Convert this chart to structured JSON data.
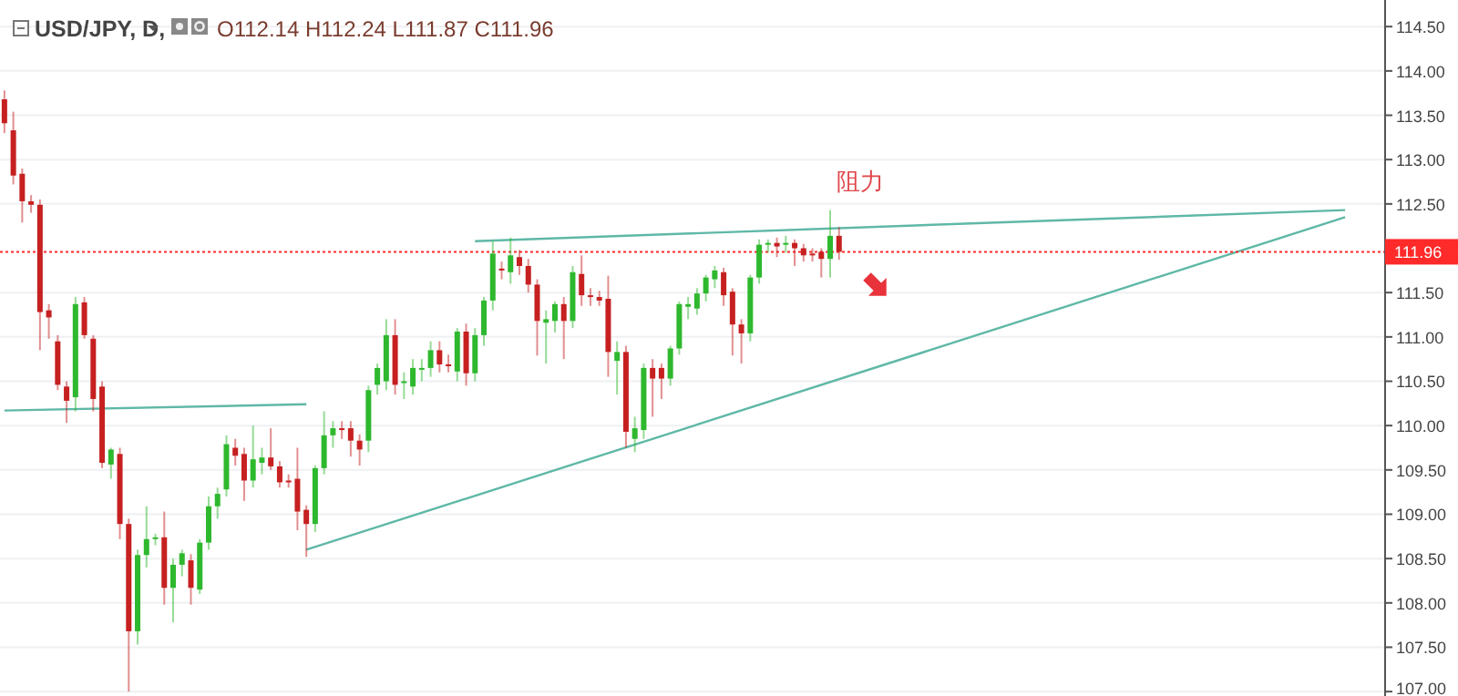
{
  "chart_data": {
    "type": "candlestick",
    "title": "USD/JPY, D,",
    "subtitle": "O112.14 H112.24 L111.87 C111.96",
    "annotations": [
      "阻力"
    ],
    "categories": [
      null,
      null,
      null,
      null,
      null,
      null,
      null,
      null,
      null,
      null,
      null,
      null,
      null,
      null,
      null,
      null,
      null,
      null,
      null,
      null,
      null,
      null,
      null,
      null,
      null,
      null,
      null,
      null,
      null,
      null,
      null,
      null,
      null,
      null,
      null,
      null,
      null,
      null,
      null,
      null,
      null,
      null,
      null,
      null,
      null,
      null,
      null,
      null,
      null,
      null,
      null,
      null,
      null,
      null,
      null,
      null,
      null,
      null,
      null,
      null,
      null,
      null,
      null,
      null,
      null,
      null,
      null,
      null,
      null,
      null,
      null,
      null,
      null,
      null,
      null,
      null,
      null,
      null,
      null,
      null,
      null,
      null,
      null,
      null,
      null,
      null,
      null,
      null,
      null,
      null,
      null,
      null,
      null,
      null,
      null,
      null,
      null,
      null,
      null,
      null,
      null,
      null,
      null,
      null,
      null,
      null,
      null,
      null,
      null,
      null,
      null,
      null,
      null,
      null,
      null,
      null,
      null,
      null,
      null,
      null,
      null,
      null,
      null,
      null,
      null,
      null,
      null,
      null,
      null,
      null,
      null,
      null,
      null,
      null,
      null,
      null,
      null,
      null,
      null,
      null,
      null,
      null,
      null,
      null,
      null,
      null,
      null,
      null,
      null,
      null,
      null,
      null,
      null,
      null,
      null,
      null
    ],
    "ohlc": [
      [
        113.68,
        113.78,
        113.3,
        113.41
      ],
      [
        113.33,
        113.54,
        112.72,
        112.82
      ],
      [
        112.84,
        112.9,
        112.29,
        112.53
      ],
      [
        112.53,
        112.6,
        112.4,
        112.49
      ],
      [
        112.49,
        112.55,
        110.85,
        111.28
      ],
      [
        111.3,
        111.37,
        110.98,
        111.22
      ],
      [
        110.95,
        111.02,
        110.4,
        110.46
      ],
      [
        110.44,
        110.5,
        110.03,
        110.28
      ],
      [
        110.32,
        111.45,
        110.16,
        111.37
      ],
      [
        111.39,
        111.45,
        110.98,
        111.02
      ],
      [
        110.98,
        111.02,
        110.16,
        110.3
      ],
      [
        110.44,
        110.5,
        109.52,
        109.58
      ],
      [
        109.56,
        109.75,
        109.4,
        109.73
      ],
      [
        109.68,
        109.75,
        108.72,
        108.89
      ],
      [
        108.89,
        108.95,
        107.0,
        107.68
      ],
      [
        107.68,
        108.6,
        107.53,
        108.54
      ],
      [
        108.54,
        109.09,
        108.4,
        108.72
      ],
      [
        108.72,
        108.78,
        108.65,
        108.74
      ],
      [
        108.74,
        109.03,
        107.98,
        108.17
      ],
      [
        108.17,
        108.5,
        107.78,
        108.43
      ],
      [
        108.43,
        108.6,
        108.3,
        108.56
      ],
      [
        108.48,
        108.55,
        107.98,
        108.17
      ],
      [
        108.15,
        108.72,
        108.1,
        108.68
      ],
      [
        108.68,
        109.2,
        108.6,
        109.09
      ],
      [
        109.09,
        109.3,
        108.95,
        109.23
      ],
      [
        109.28,
        109.89,
        109.2,
        109.79
      ],
      [
        109.75,
        109.85,
        109.55,
        109.66
      ],
      [
        109.68,
        109.75,
        109.15,
        109.38
      ],
      [
        109.38,
        110.0,
        109.3,
        109.62
      ],
      [
        109.58,
        109.75,
        109.45,
        109.64
      ],
      [
        109.64,
        109.97,
        109.5,
        109.54
      ],
      [
        109.54,
        109.6,
        109.3,
        109.36
      ],
      [
        109.38,
        109.45,
        109.3,
        109.36
      ],
      [
        109.4,
        109.75,
        108.82,
        109.03
      ],
      [
        109.05,
        109.1,
        108.52,
        108.89
      ],
      [
        108.89,
        109.55,
        108.8,
        109.52
      ],
      [
        109.52,
        110.16,
        109.45,
        109.89
      ],
      [
        109.89,
        110.05,
        109.75,
        109.97
      ],
      [
        109.97,
        110.05,
        109.85,
        109.95
      ],
      [
        109.97,
        110.05,
        109.65,
        109.83
      ],
      [
        109.83,
        109.9,
        109.55,
        109.73
      ],
      [
        109.83,
        110.45,
        109.7,
        110.4
      ],
      [
        110.46,
        110.7,
        110.35,
        110.65
      ],
      [
        110.5,
        111.2,
        110.4,
        111.02
      ],
      [
        111.02,
        111.2,
        110.35,
        110.46
      ],
      [
        110.48,
        110.6,
        110.3,
        110.5
      ],
      [
        110.44,
        110.75,
        110.35,
        110.65
      ],
      [
        110.63,
        110.75,
        110.5,
        110.65
      ],
      [
        110.65,
        110.95,
        110.55,
        110.85
      ],
      [
        110.85,
        110.95,
        110.6,
        110.69
      ],
      [
        110.69,
        110.8,
        110.6,
        110.67
      ],
      [
        110.61,
        111.1,
        110.5,
        111.06
      ],
      [
        111.06,
        111.15,
        110.45,
        110.59
      ],
      [
        110.59,
        111.1,
        110.5,
        111.02
      ],
      [
        111.02,
        111.45,
        110.9,
        111.41
      ],
      [
        111.41,
        112.08,
        111.3,
        111.94
      ],
      [
        111.77,
        111.85,
        111.65,
        111.75
      ],
      [
        111.73,
        112.12,
        111.6,
        111.92
      ],
      [
        111.9,
        111.98,
        111.7,
        111.8
      ],
      [
        111.8,
        111.88,
        111.5,
        111.59
      ],
      [
        111.59,
        111.65,
        110.79,
        111.18
      ],
      [
        111.16,
        111.3,
        110.7,
        111.2
      ],
      [
        111.18,
        111.4,
        111.05,
        111.37
      ],
      [
        111.37,
        111.45,
        110.75,
        111.18
      ],
      [
        111.18,
        111.8,
        111.1,
        111.73
      ],
      [
        111.71,
        111.92,
        111.35,
        111.47
      ],
      [
        111.47,
        111.55,
        111.35,
        111.45
      ],
      [
        111.45,
        111.52,
        111.35,
        111.41
      ],
      [
        111.43,
        111.69,
        110.55,
        110.83
      ],
      [
        110.73,
        110.95,
        110.35,
        110.83
      ],
      [
        110.83,
        110.9,
        109.75,
        109.93
      ],
      [
        109.85,
        110.1,
        109.7,
        109.97
      ],
      [
        109.95,
        110.7,
        109.85,
        110.65
      ],
      [
        110.65,
        110.75,
        110.1,
        110.53
      ],
      [
        110.65,
        110.7,
        110.3,
        110.53
      ],
      [
        110.53,
        110.9,
        110.45,
        110.87
      ],
      [
        110.87,
        111.4,
        110.8,
        111.37
      ],
      [
        111.34,
        111.45,
        111.2,
        111.37
      ],
      [
        111.32,
        111.55,
        111.25,
        111.49
      ],
      [
        111.49,
        111.7,
        111.4,
        111.67
      ],
      [
        111.65,
        111.8,
        111.55,
        111.75
      ],
      [
        111.73,
        111.78,
        111.35,
        111.47
      ],
      [
        111.51,
        111.55,
        110.79,
        111.14
      ],
      [
        111.14,
        111.2,
        110.7,
        111.04
      ],
      [
        111.04,
        111.7,
        110.95,
        111.67
      ],
      [
        111.67,
        112.1,
        111.6,
        112.04
      ],
      [
        112.04,
        112.1,
        111.95,
        112.06
      ],
      [
        112.06,
        112.12,
        111.9,
        112.02
      ],
      [
        112.04,
        112.14,
        111.95,
        112.06
      ],
      [
        112.06,
        112.1,
        111.8,
        112.0
      ],
      [
        112.0,
        112.05,
        111.85,
        111.92
      ],
      [
        111.94,
        112.0,
        111.85,
        111.92
      ],
      [
        111.96,
        112.0,
        111.67,
        111.88
      ],
      [
        111.88,
        112.43,
        111.67,
        112.14
      ],
      [
        112.14,
        112.24,
        111.87,
        111.96
      ],
      null,
      null,
      null,
      null,
      null,
      null,
      null,
      null,
      null,
      null,
      null,
      null,
      null,
      null,
      null,
      null,
      null,
      null,
      null,
      null,
      null,
      null,
      null,
      null,
      null,
      null,
      null,
      null,
      null,
      null,
      null,
      null,
      null,
      null,
      null,
      null,
      null,
      null,
      null,
      null,
      null,
      null,
      null,
      null,
      null,
      null,
      null,
      null,
      null,
      null,
      null,
      null,
      null,
      null,
      null,
      null,
      null,
      null,
      null,
      null,
      null
    ],
    "colors": [
      "#c62020",
      "#c62020",
      "#c62020",
      "#c62020",
      "#c62020",
      "#c62020",
      "#c62020",
      "#c62020",
      "#2eb82e",
      "#c62020",
      "#c62020",
      "#c62020",
      "#2eb82e",
      "#c62020",
      "#c62020",
      "#2eb82e",
      "#2eb82e",
      "#2eb82e",
      "#c62020",
      "#2eb82e",
      "#2eb82e",
      "#c62020",
      "#2eb82e",
      "#2eb82e",
      "#2eb82e",
      "#2eb82e",
      "#c62020",
      "#c62020",
      "#2eb82e",
      "#2eb82e",
      "#c62020",
      "#c62020",
      "#c62020",
      "#c62020",
      "#c62020",
      "#2eb82e",
      "#2eb82e",
      "#2eb82e",
      "#c62020",
      "#c62020",
      "#c62020",
      "#2eb82e",
      "#2eb82e",
      "#2eb82e",
      "#c62020",
      "#2eb82e",
      "#2eb82e",
      "#2eb82e",
      "#2eb82e",
      "#c62020",
      "#c62020",
      "#2eb82e",
      "#c62020",
      "#2eb82e",
      "#2eb82e",
      "#2eb82e",
      "#c62020",
      "#2eb82e",
      "#c62020",
      "#c62020",
      "#c62020",
      "#2eb82e",
      "#2eb82e",
      "#c62020",
      "#2eb82e",
      "#c62020",
      "#c62020",
      "#c62020",
      "#c62020",
      "#2eb82e",
      "#c62020",
      "#2eb82e",
      "#2eb82e",
      "#c62020",
      "#c62020",
      "#2eb82e",
      "#2eb82e",
      "#2eb82e",
      "#2eb82e",
      "#2eb82e",
      "#2eb82e",
      "#c62020",
      "#c62020",
      "#c62020",
      "#2eb82e",
      "#2eb82e",
      "#2eb82e",
      "#c62020",
      "#2eb82e",
      "#c62020",
      "#c62020",
      "#c62020",
      "#c62020",
      "#2eb82e",
      "#c62020",
      null,
      null,
      null,
      null,
      null,
      null,
      null,
      null,
      null,
      null,
      null,
      null,
      null,
      null,
      null,
      null,
      null,
      null,
      null,
      null,
      null,
      null,
      null,
      null,
      null,
      null,
      null,
      null,
      null,
      null,
      null,
      null,
      null,
      null,
      null,
      null,
      null,
      null,
      null,
      null,
      null,
      null,
      null,
      null,
      null,
      null,
      null,
      null,
      null,
      null,
      null,
      null,
      null,
      null,
      null,
      null,
      null,
      null,
      null,
      null,
      null
    ],
    "series": [
      {
        "type": "line",
        "color": "#5fb8a6",
        "values": [
          110.17,
          null,
          null,
          null,
          null,
          null,
          null,
          null,
          null,
          null,
          null,
          null,
          null,
          null,
          null,
          null,
          null,
          null,
          null,
          null,
          null,
          null,
          null,
          null,
          null,
          null,
          null,
          null,
          null,
          null,
          null,
          null,
          null,
          null,
          110.24,
          null,
          null,
          null,
          null,
          null,
          null,
          null,
          null,
          null,
          null,
          null,
          null,
          null,
          null,
          null,
          null,
          null,
          null,
          null,
          null,
          null,
          null,
          null,
          null,
          null,
          null,
          null,
          null,
          null,
          null,
          null,
          null,
          null,
          null,
          null,
          null,
          null,
          null,
          null,
          null,
          null,
          null,
          null,
          null,
          null,
          null,
          null,
          null,
          null,
          null,
          null,
          null,
          null,
          null,
          null,
          null,
          null,
          null,
          null,
          null,
          null,
          null,
          null,
          null,
          null,
          null,
          null,
          null,
          null,
          null,
          null,
          null,
          null,
          null,
          null,
          null,
          null,
          null,
          null,
          null,
          null,
          null,
          null,
          null,
          null,
          null,
          null,
          null,
          null,
          null,
          null,
          null,
          null,
          null,
          null,
          null,
          null,
          null,
          null,
          null,
          null,
          null,
          null,
          null,
          null,
          null,
          null,
          null,
          null,
          null,
          null,
          null,
          null,
          null,
          null,
          null,
          null,
          null,
          null,
          null,
          null
        ]
      },
      {
        "type": "line",
        "color": "#5fb8a6",
        "values": [
          null,
          null,
          null,
          null,
          null,
          null,
          null,
          null,
          null,
          null,
          null,
          null,
          null,
          null,
          null,
          null,
          null,
          null,
          null,
          null,
          null,
          null,
          null,
          null,
          null,
          null,
          null,
          null,
          null,
          null,
          null,
          null,
          null,
          null,
          null,
          null,
          null,
          null,
          null,
          null,
          null,
          null,
          null,
          null,
          null,
          null,
          null,
          null,
          null,
          null,
          null,
          null,
          null,
          112.08,
          null,
          null,
          null,
          null,
          null,
          null,
          null,
          null,
          null,
          null,
          null,
          null,
          null,
          null,
          null,
          null,
          null,
          null,
          null,
          null,
          null,
          null,
          null,
          null,
          null,
          null,
          null,
          null,
          null,
          null,
          null,
          null,
          null,
          null,
          null,
          null,
          null,
          null,
          null,
          null,
          null,
          null,
          null,
          null,
          null,
          null,
          null,
          null,
          null,
          null,
          null,
          null,
          null,
          null,
          null,
          null,
          null,
          null,
          null,
          null,
          null,
          null,
          null,
          null,
          null,
          null,
          null,
          null,
          null,
          null,
          null,
          null,
          null,
          null,
          null,
          null,
          null,
          null,
          null,
          null,
          null,
          null,
          null,
          null,
          null,
          null,
          null,
          null,
          null,
          null,
          null,
          null,
          null,
          null,
          null,
          null,
          null,
          112.43,
          null,
          null,
          null,
          null
        ]
      },
      {
        "type": "line",
        "color": "#5fb8a6",
        "values": [
          null,
          null,
          null,
          null,
          null,
          null,
          null,
          null,
          null,
          null,
          null,
          null,
          null,
          null,
          null,
          null,
          null,
          null,
          null,
          null,
          null,
          null,
          null,
          null,
          null,
          null,
          null,
          null,
          null,
          null,
          null,
          null,
          null,
          null,
          108.6,
          null,
          null,
          null,
          null,
          null,
          null,
          null,
          null,
          null,
          null,
          null,
          null,
          null,
          null,
          null,
          null,
          null,
          null,
          null,
          null,
          null,
          null,
          null,
          null,
          null,
          null,
          null,
          null,
          null,
          null,
          null,
          null,
          null,
          null,
          null,
          null,
          null,
          null,
          null,
          null,
          null,
          null,
          null,
          null,
          null,
          null,
          null,
          null,
          null,
          null,
          null,
          null,
          null,
          null,
          null,
          null,
          null,
          null,
          null,
          null,
          null,
          null,
          null,
          null,
          null,
          null,
          null,
          null,
          null,
          null,
          null,
          null,
          null,
          null,
          null,
          null,
          null,
          null,
          null,
          null,
          null,
          null,
          null,
          null,
          null,
          null,
          null,
          null,
          null,
          null,
          null,
          null,
          null,
          null,
          null,
          null,
          null,
          null,
          null,
          null,
          null,
          null,
          null,
          null,
          null,
          null,
          null,
          null,
          null,
          null,
          null,
          null,
          null,
          null,
          null,
          null,
          112.35,
          null,
          null,
          null,
          null
        ]
      }
    ],
    "ref_lines": [
      {
        "axis": "y",
        "value": 111.96,
        "label": "111.96",
        "color": "#ff2a2a",
        "line_style": "dotted"
      }
    ],
    "ylim": [
      106.95,
      114.8
    ],
    "yticks": [
      {
        "value": 107,
        "label": "107.00"
      },
      {
        "value": 107.5,
        "label": "107.50"
      },
      {
        "value": 108,
        "label": "108.00"
      },
      {
        "value": 108.5,
        "label": "108.50"
      },
      {
        "value": 109,
        "label": "109.00"
      },
      {
        "value": 109.5,
        "label": "109.50"
      },
      {
        "value": 110,
        "label": "110.00"
      },
      {
        "value": 110.5,
        "label": "110.50"
      },
      {
        "value": 111,
        "label": "111.00"
      },
      {
        "value": 111.5,
        "label": "111.50"
      },
      {
        "value": 112.5,
        "label": "112.50"
      },
      {
        "value": 113,
        "label": "113.00"
      },
      {
        "value": 113.5,
        "label": "113.50"
      },
      {
        "value": 114,
        "label": "114.00"
      },
      {
        "value": 114.5,
        "label": "114.50"
      }
    ],
    "tick_labels": "y",
    "grid": true
  }
}
